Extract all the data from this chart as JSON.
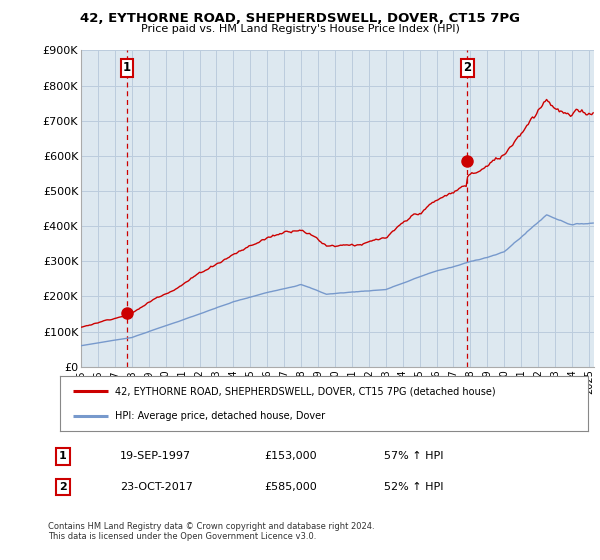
{
  "title": "42, EYTHORNE ROAD, SHEPHERDSWELL, DOVER, CT15 7PG",
  "subtitle": "Price paid vs. HM Land Registry's House Price Index (HPI)",
  "legend_label_red": "42, EYTHORNE ROAD, SHEPHERDSWELL, DOVER, CT15 7PG (detached house)",
  "legend_label_blue": "HPI: Average price, detached house, Dover",
  "annotation1_num": "1",
  "annotation1_date": "19-SEP-1997",
  "annotation1_price": "£153,000",
  "annotation1_hpi": "57% ↑ HPI",
  "annotation2_num": "2",
  "annotation2_date": "23-OCT-2017",
  "annotation2_price": "£585,000",
  "annotation2_hpi": "52% ↑ HPI",
  "footer": "Contains HM Land Registry data © Crown copyright and database right 2024.\nThis data is licensed under the Open Government Licence v3.0.",
  "red_color": "#cc0000",
  "blue_color": "#7799cc",
  "dashed_color": "#cc0000",
  "bg_chart_color": "#dde8f0",
  "background_color": "#ffffff",
  "grid_color": "#bbccdd",
  "ylim": [
    0,
    900000
  ],
  "yticks": [
    0,
    100000,
    200000,
    300000,
    400000,
    500000,
    600000,
    700000,
    800000,
    900000
  ],
  "ytick_labels": [
    "£0",
    "£100K",
    "£200K",
    "£300K",
    "£400K",
    "£500K",
    "£600K",
    "£700K",
    "£800K",
    "£900K"
  ],
  "purchase1_year": 1997.72,
  "purchase1_price": 153000,
  "purchase2_year": 2017.81,
  "purchase2_price": 585000,
  "xlim_start": 1995,
  "xlim_end": 2025.3
}
